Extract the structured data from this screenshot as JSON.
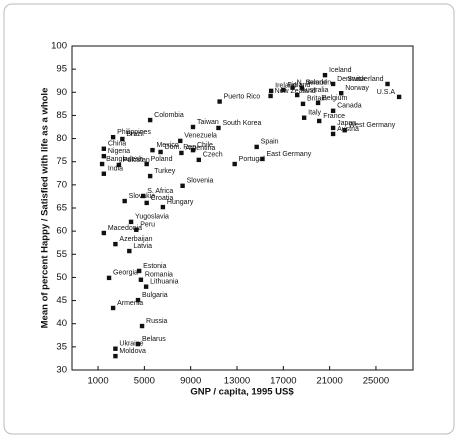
{
  "chart_data": {
    "type": "scatter",
    "x_label": "GNP / capita, 1995 US$",
    "y_label": "Mean of percent Happy / Satisfied with life as a whole",
    "xlim": [
      -1250,
      28200
    ],
    "ylim": [
      30,
      100
    ],
    "xticks": [
      1000,
      5000,
      9000,
      13000,
      17000,
      21000,
      25000
    ],
    "yticks": [
      30,
      35,
      40,
      45,
      50,
      55,
      60,
      65,
      70,
      75,
      80,
      85,
      90,
      95,
      100
    ],
    "color": "#111111",
    "labels": [
      "Iceland",
      "N. Ireland",
      "Ireland",
      "Finland",
      "Sweden",
      "Denmark",
      "Norway",
      "Switzerland",
      "U.S.A",
      "Australia",
      "New Zealand",
      "Belgium",
      "Britain",
      "Canada",
      "Italy",
      "France",
      "Japan",
      "West Germany",
      "Austria",
      "Spain",
      "East Germany",
      "Portugal",
      "Puerto Rico",
      "South Korea",
      "Taiwan",
      "Venezuela",
      "Chile",
      "Argentina",
      "Czech",
      "Slovenia",
      "Colombia",
      "Philippines",
      "Brazil",
      "Mexico",
      "China",
      "Nigeria",
      "Bangladesh",
      "India",
      "Dom. Rep.",
      "Pakistan",
      "Poland",
      "Turkey",
      "S. Africa",
      "Croatia",
      "Slovakia",
      "Hungary",
      "Yugoslavia",
      "Peru",
      "Macedonia",
      "Azerbaijan",
      "Latvia",
      "Estonia",
      "Georgia",
      "Romania",
      "Lithuania",
      "Armenia",
      "Bulgaria",
      "Russia",
      "Ukraine",
      "Belarus",
      "Moldova"
    ],
    "x": [
      20600,
      17800,
      15950,
      17000,
      18600,
      21300,
      22000,
      26000,
      27000,
      18200,
      15900,
      20000,
      18700,
      21300,
      18800,
      20100,
      21300,
      22300,
      21300,
      14700,
      15200,
      12800,
      11500,
      11400,
      9200,
      8100,
      9200,
      8200,
      9700,
      8300,
      5500,
      2300,
      3100,
      5700,
      1500,
      1500,
      1350,
      1500,
      6400,
      2800,
      5200,
      5500,
      4900,
      5200,
      3300,
      6600,
      3850,
      4300,
      1500,
      2500,
      3700,
      4550,
      1950,
      4700,
      5150,
      2300,
      4450,
      4800,
      2500,
      4450,
      2500
    ],
    "y": [
      93.7,
      91,
      90.3,
      90.5,
      91,
      91.8,
      89.8,
      91.8,
      89,
      89.4,
      89.2,
      87.7,
      87.5,
      86,
      84.5,
      83.8,
      82.3,
      81.8,
      81,
      78.2,
      75.6,
      74.5,
      88,
      82.3,
      82.5,
      79.5,
      77.5,
      76.9,
      75.4,
      69.8,
      84,
      80.3,
      79.9,
      77.5,
      77.8,
      76.2,
      74.5,
      72.4,
      77.1,
      74.3,
      74.5,
      71.9,
      67.6,
      66.1,
      66.5,
      65.2,
      62,
      60.3,
      59.6,
      57.2,
      55.7,
      51.4,
      49.9,
      49.5,
      48,
      43.4,
      45.1,
      39.5,
      34.6,
      35.6,
      33
    ]
  }
}
